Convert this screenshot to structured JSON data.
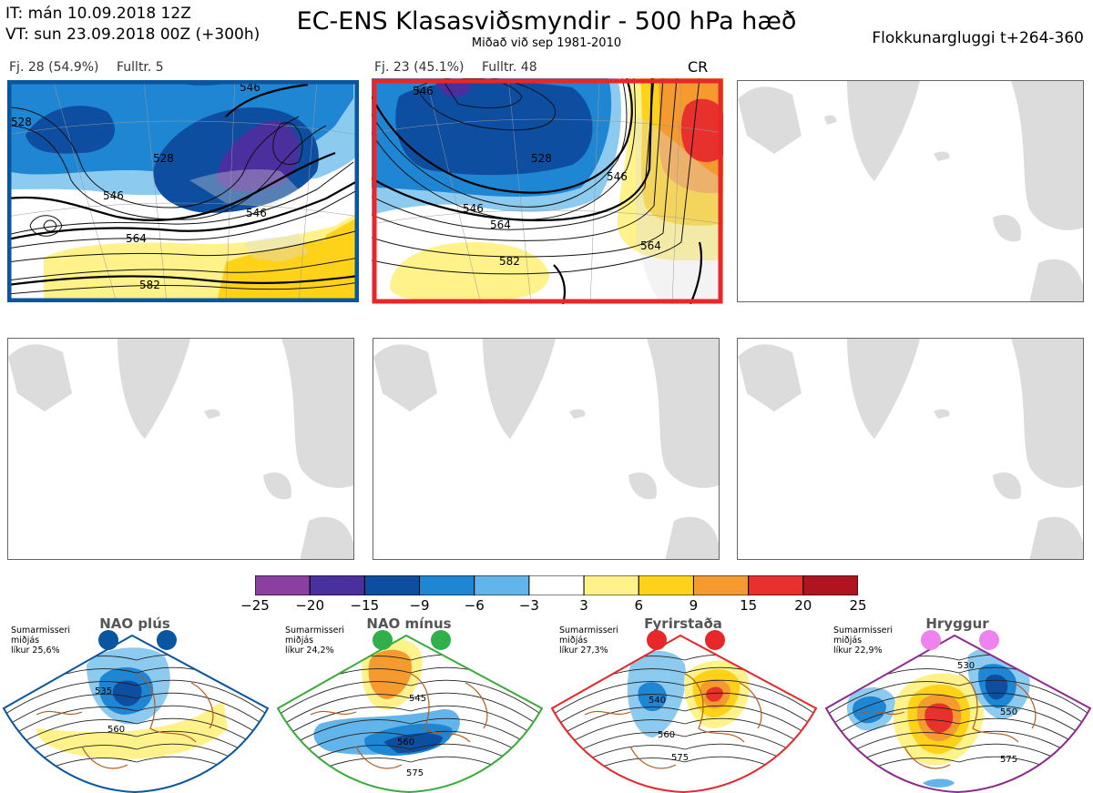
{
  "header": {
    "it": "IT: mán 10.09.2018 12Z",
    "vt": "VT: sun 23.09.2018 00Z  (+300h)",
    "title": "EC-ENS Klasasviðsmyndir - 500 hPa hæð",
    "subtitle": "Miðað við sep 1981-2010",
    "window": "Flokkunargluggi t+264-360"
  },
  "clusters": [
    {
      "label": "Fj. 28 (54.9%)",
      "rep": "Fulltr. 5",
      "regime": "",
      "frame_color": "#0a55a0",
      "contours": [
        "528",
        "546",
        "546",
        "528",
        "564",
        "582",
        "546"
      ]
    },
    {
      "label": "Fj. 23 (45.1%)",
      "rep": "Fulltr. 48",
      "regime": "CR",
      "frame_color": "#e8272b",
      "contours": [
        "546",
        "564",
        "528",
        "546",
        "546",
        "564",
        "582"
      ]
    }
  ],
  "colorbar": {
    "ticks": [
      "−25",
      "−20",
      "−15",
      "−9",
      "−6",
      "−3",
      "3",
      "6",
      "9",
      "15",
      "20",
      "25"
    ],
    "colors": [
      "#8b3fa0",
      "#4a2f9e",
      "#0d4ea0",
      "#1f86d4",
      "#61b5ea",
      "#ffffff",
      "#fff28a",
      "#ffd21a",
      "#f59a2e",
      "#e8302c",
      "#b01421"
    ]
  },
  "regimes": [
    {
      "name": "NAO plús",
      "season": "Sumarmisseri",
      "median": "miðjás",
      "prob": "líkur 25,6%",
      "color": "#0a55a0",
      "dot_color": "#0a55a0",
      "contours": [
        "535",
        "560"
      ]
    },
    {
      "name": "NAO mínus",
      "season": "Sumarmisseri",
      "median": "miðjás",
      "prob": "líkur 24,2%",
      "color": "#3aaa3a",
      "dot_color": "#2fb04a",
      "contours": [
        "545",
        "560",
        "575"
      ]
    },
    {
      "name": "Fyrirstaða",
      "season": "Sumarmisseri",
      "median": "miðjás",
      "prob": "líkur 27,3%",
      "color": "#e8272b",
      "dot_color": "#e8272b",
      "contours": [
        "540",
        "560",
        "575"
      ]
    },
    {
      "name": "Hryggur",
      "season": "Sumarmisseri",
      "median": "miðjás",
      "prob": "líkur 22,9%",
      "color": "#8e2a8e",
      "dot_color": "#ee82ee",
      "contours": [
        "530",
        "550",
        "575"
      ]
    }
  ]
}
